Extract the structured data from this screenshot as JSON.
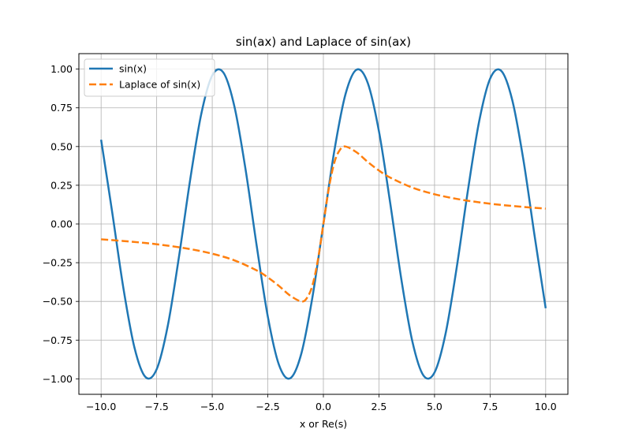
{
  "chart_data": {
    "type": "line",
    "title": "sin(ax) and Laplace of sin(ax)",
    "xlabel": "x or Re(s)",
    "ylabel": "",
    "xlim": [
      -11.0,
      11.0
    ],
    "ylim": [
      -1.1,
      1.1
    ],
    "grid": true,
    "legend": "top-left",
    "x_ticks": [
      -10.0,
      -7.5,
      -5.0,
      -2.5,
      0.0,
      2.5,
      5.0,
      7.5,
      10.0
    ],
    "x_tick_labels": [
      "−10.0",
      "−7.5",
      "−5.0",
      "−2.5",
      "0.0",
      "2.5",
      "5.0",
      "7.5",
      "10.0"
    ],
    "y_ticks": [
      -1.0,
      -0.75,
      -0.5,
      -0.25,
      0.0,
      0.25,
      0.5,
      0.75,
      1.0
    ],
    "y_tick_labels": [
      "−1.00",
      "−0.75",
      "−0.50",
      "−0.25",
      "0.00",
      "0.25",
      "0.50",
      "0.75",
      "1.00"
    ],
    "series": [
      {
        "name": "sin(x)",
        "color": "#1f77b4",
        "style": "solid",
        "x": [
          -10.0,
          -9.5,
          -9.0,
          -8.5,
          -8.0,
          -7.5,
          -7.0,
          -6.5,
          -6.0,
          -5.5,
          -5.0,
          -4.5,
          -4.0,
          -3.5,
          -3.0,
          -2.5,
          -2.0,
          -1.5,
          -1.0,
          -0.5,
          0.0,
          0.5,
          1.0,
          1.5,
          2.0,
          2.5,
          3.0,
          3.5,
          4.0,
          4.5,
          5.0,
          5.5,
          6.0,
          6.5,
          7.0,
          7.5,
          8.0,
          8.5,
          9.0,
          9.5,
          10.0
        ],
        "y": [
          0.544,
          0.075,
          -0.412,
          -0.798,
          -0.989,
          -0.938,
          -0.657,
          -0.215,
          0.279,
          0.706,
          0.959,
          0.978,
          0.757,
          0.351,
          -0.141,
          -0.598,
          -0.909,
          -0.997,
          -0.841,
          -0.479,
          0.0,
          0.479,
          0.841,
          0.997,
          0.909,
          0.598,
          0.141,
          -0.351,
          -0.757,
          -0.978,
          -0.959,
          -0.706,
          -0.279,
          0.215,
          0.657,
          0.938,
          0.989,
          0.798,
          0.412,
          -0.075,
          -0.544
        ]
      },
      {
        "name": "Laplace of sin(x)",
        "color": "#ff7f0e",
        "style": "dashed",
        "x": [
          -10.0,
          -9.0,
          -8.0,
          -7.0,
          -6.0,
          -5.0,
          -4.0,
          -3.0,
          -2.5,
          -2.0,
          -1.5,
          -1.0,
          -0.75,
          -0.5,
          -0.25,
          0.0,
          0.25,
          0.5,
          0.75,
          1.0,
          1.5,
          2.0,
          2.5,
          3.0,
          4.0,
          5.0,
          6.0,
          7.0,
          8.0,
          9.0,
          10.0
        ],
        "y": [
          -0.099,
          -0.11,
          -0.123,
          -0.14,
          -0.162,
          -0.192,
          -0.235,
          -0.3,
          -0.345,
          -0.4,
          -0.462,
          -0.5,
          -0.48,
          -0.4,
          -0.235,
          0.0,
          0.235,
          0.4,
          0.48,
          0.5,
          0.462,
          0.4,
          0.345,
          0.3,
          0.235,
          0.192,
          0.162,
          0.14,
          0.123,
          0.11,
          0.099
        ]
      }
    ]
  }
}
